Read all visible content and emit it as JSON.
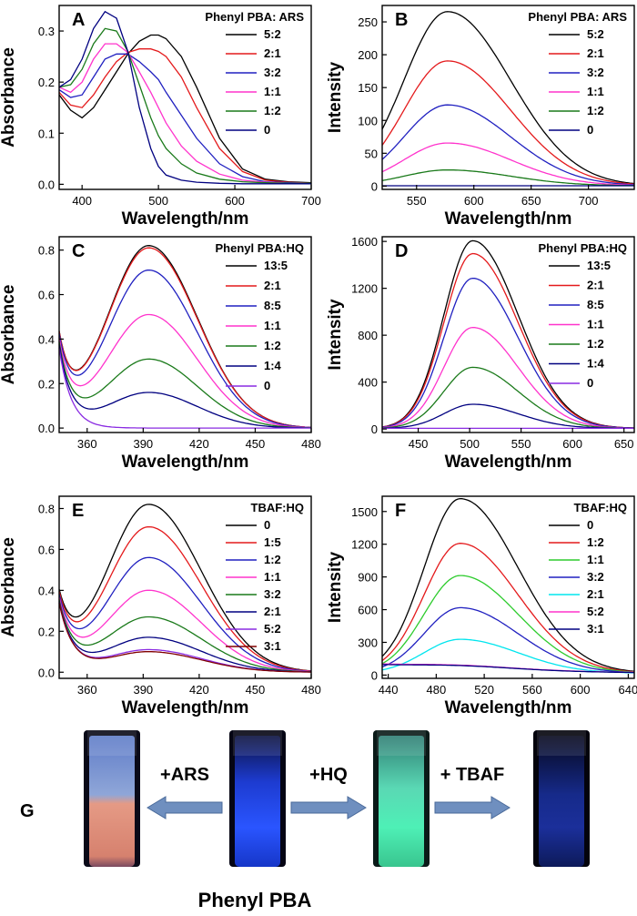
{
  "chart_data": [
    {
      "panel": "A",
      "type": "line",
      "legend_title": "Phenyl PBA: ARS",
      "xlabel": "Wavelength/nm",
      "ylabel": "Absorbance",
      "xlim": [
        370,
        700
      ],
      "ylim": [
        -0.01,
        0.35
      ],
      "xticks": [
        400,
        500,
        600,
        700
      ],
      "yticks": [
        0.0,
        0.1,
        0.2,
        0.3
      ],
      "ytick_labels": [
        "0.0",
        "0.1",
        "0.2",
        "0.3"
      ],
      "legend_position": "top-right",
      "series": [
        {
          "name": "5:2",
          "color": "#000000",
          "x": [
            370,
            385,
            400,
            415,
            430,
            445,
            460,
            475,
            490,
            500,
            510,
            530,
            550,
            580,
            610,
            640,
            670,
            700
          ],
          "y": [
            0.175,
            0.145,
            0.13,
            0.15,
            0.185,
            0.22,
            0.255,
            0.28,
            0.292,
            0.292,
            0.285,
            0.25,
            0.19,
            0.09,
            0.03,
            0.01,
            0.005,
            0.003
          ]
        },
        {
          "name": "2:1",
          "color": "#e41a1c",
          "x": [
            370,
            385,
            400,
            415,
            430,
            445,
            460,
            475,
            490,
            500,
            510,
            530,
            550,
            580,
            610,
            640,
            670,
            700
          ],
          "y": [
            0.18,
            0.155,
            0.15,
            0.175,
            0.21,
            0.24,
            0.258,
            0.265,
            0.265,
            0.26,
            0.25,
            0.21,
            0.15,
            0.07,
            0.025,
            0.008,
            0.004,
            0.002
          ]
        },
        {
          "name": "3:2",
          "color": "#2020c0",
          "x": [
            370,
            385,
            400,
            415,
            430,
            445,
            460,
            475,
            490,
            500,
            510,
            530,
            550,
            580,
            610,
            640,
            670,
            700
          ],
          "y": [
            0.185,
            0.17,
            0.175,
            0.21,
            0.245,
            0.255,
            0.255,
            0.24,
            0.22,
            0.205,
            0.18,
            0.135,
            0.09,
            0.04,
            0.015,
            0.005,
            0.003,
            0.002
          ]
        },
        {
          "name": "1:1",
          "color": "#ff33cc",
          "x": [
            370,
            385,
            400,
            415,
            430,
            445,
            460,
            475,
            490,
            500,
            510,
            530,
            550,
            580,
            610,
            640,
            670,
            700
          ],
          "y": [
            0.19,
            0.18,
            0.2,
            0.245,
            0.275,
            0.275,
            0.258,
            0.22,
            0.18,
            0.15,
            0.12,
            0.075,
            0.045,
            0.02,
            0.008,
            0.004,
            0.002,
            0.002
          ]
        },
        {
          "name": "1:2",
          "color": "#1a7a1a",
          "x": [
            370,
            385,
            400,
            415,
            430,
            445,
            460,
            475,
            490,
            500,
            510,
            530,
            550,
            580,
            610,
            640,
            670,
            700
          ],
          "y": [
            0.19,
            0.195,
            0.225,
            0.275,
            0.305,
            0.3,
            0.26,
            0.195,
            0.13,
            0.095,
            0.07,
            0.04,
            0.022,
            0.01,
            0.005,
            0.003,
            0.002,
            0.002
          ]
        },
        {
          "name": "0",
          "color": "#000080",
          "x": [
            370,
            385,
            400,
            415,
            430,
            445,
            460,
            475,
            490,
            500,
            510,
            530,
            550,
            580,
            610,
            640,
            670,
            700
          ],
          "y": [
            0.19,
            0.205,
            0.245,
            0.305,
            0.338,
            0.325,
            0.26,
            0.15,
            0.07,
            0.035,
            0.018,
            0.008,
            0.004,
            0.002,
            0.001,
            0.001,
            0.001,
            0.001
          ]
        }
      ]
    },
    {
      "panel": "B",
      "type": "line",
      "legend_title": "Phenyl PBA: ARS",
      "xlabel": "Wavelength/nm",
      "ylabel": "Intensity",
      "xlim": [
        520,
        740
      ],
      "ylim": [
        -5,
        275
      ],
      "xticks": [
        550,
        600,
        650,
        700
      ],
      "yticks": [
        0,
        50,
        100,
        150,
        200,
        250
      ],
      "legend_position": "top-right",
      "series": [
        {
          "name": "5:2",
          "color": "#000000",
          "peak": 265
        },
        {
          "name": "2:1",
          "color": "#e41a1c",
          "peak": 190
        },
        {
          "name": "3:2",
          "color": "#2020c0",
          "peak": 123
        },
        {
          "name": "1:1",
          "color": "#ff33cc",
          "peak": 65
        },
        {
          "name": "1:2",
          "color": "#1a7a1a",
          "peak": 24
        },
        {
          "name": "0",
          "color": "#000080",
          "peak": 0
        }
      ]
    },
    {
      "panel": "C",
      "type": "line",
      "legend_title": "Phenyl PBA:HQ",
      "xlabel": "Wavelength/nm",
      "ylabel": "Absorbance",
      "xlim": [
        345,
        480
      ],
      "ylim": [
        -0.02,
        0.86
      ],
      "xticks": [
        360,
        390,
        420,
        450,
        480
      ],
      "yticks": [
        0.0,
        0.2,
        0.4,
        0.6,
        0.8
      ],
      "ytick_labels": [
        "0.0",
        "0.2",
        "0.4",
        "0.6",
        "0.8"
      ],
      "legend_position": "top-right",
      "series": [
        {
          "name": "13:5",
          "color": "#000000",
          "peak": 0.82
        },
        {
          "name": "2:1",
          "color": "#e41a1c",
          "peak": 0.81
        },
        {
          "name": "8:5",
          "color": "#2020c0",
          "peak": 0.71
        },
        {
          "name": "1:1",
          "color": "#ff33cc",
          "peak": 0.51
        },
        {
          "name": "1:2",
          "color": "#1a7a1a",
          "peak": 0.31
        },
        {
          "name": "1:4",
          "color": "#000080",
          "peak": 0.16
        },
        {
          "name": "0",
          "color": "#8a2be2",
          "peak": 0.0
        }
      ]
    },
    {
      "panel": "D",
      "type": "line",
      "legend_title": "Phenyl PBA:HQ",
      "xlabel": "Wavelength/nm",
      "ylabel": "Intensity",
      "xlim": [
        415,
        660
      ],
      "ylim": [
        -30,
        1640
      ],
      "xticks": [
        450,
        500,
        550,
        600,
        650
      ],
      "yticks": [
        0,
        400,
        800,
        1200,
        1600
      ],
      "legend_position": "top-right",
      "series": [
        {
          "name": "13:5",
          "color": "#000000",
          "peak": 1600
        },
        {
          "name": "2:1",
          "color": "#e41a1c",
          "peak": 1490
        },
        {
          "name": "8:5",
          "color": "#2020c0",
          "peak": 1280
        },
        {
          "name": "1:1",
          "color": "#ff33cc",
          "peak": 860
        },
        {
          "name": "1:2",
          "color": "#1a7a1a",
          "peak": 520
        },
        {
          "name": "1:4",
          "color": "#000080",
          "peak": 205
        },
        {
          "name": "0",
          "color": "#8a2be2",
          "peak": 0
        }
      ]
    },
    {
      "panel": "E",
      "type": "line",
      "legend_title": "TBAF:HQ",
      "xlabel": "Wavelength/nm",
      "ylabel": "Absorbance",
      "xlim": [
        345,
        480
      ],
      "ylim": [
        -0.03,
        0.86
      ],
      "xticks": [
        360,
        390,
        420,
        450,
        480
      ],
      "yticks": [
        0.0,
        0.2,
        0.4,
        0.6,
        0.8
      ],
      "ytick_labels": [
        "0.0",
        "0.2",
        "0.4",
        "0.6",
        "0.8"
      ],
      "legend_position": "top-right",
      "series": [
        {
          "name": "0",
          "color": "#000000",
          "peak": 0.82
        },
        {
          "name": "1:5",
          "color": "#e41a1c",
          "peak": 0.71
        },
        {
          "name": "1:2",
          "color": "#2020c0",
          "peak": 0.56
        },
        {
          "name": "1:1",
          "color": "#ff33cc",
          "peak": 0.4
        },
        {
          "name": "3:2",
          "color": "#1a7a1a",
          "peak": 0.27
        },
        {
          "name": "2:1",
          "color": "#000080",
          "peak": 0.17
        },
        {
          "name": "5:2",
          "color": "#8a2be2",
          "peak": 0.11
        },
        {
          "name": "3:1",
          "color": "#800000",
          "peak": 0.1
        }
      ]
    },
    {
      "panel": "F",
      "type": "line",
      "legend_title": "TBAF:HQ",
      "xlabel": "Wavelength/nm",
      "ylabel": "Intensity",
      "xlim": [
        435,
        645
      ],
      "ylim": [
        -30,
        1640
      ],
      "xticks": [
        440,
        480,
        520,
        560,
        600,
        640
      ],
      "yticks": [
        0,
        300,
        600,
        900,
        1200,
        1500
      ],
      "legend_position": "top-right",
      "series": [
        {
          "name": "0",
          "color": "#000000",
          "peak": 1600
        },
        {
          "name": "1:2",
          "color": "#e41a1c",
          "peak": 1190
        },
        {
          "name": "1:1",
          "color": "#2ecc2e",
          "peak": 895
        },
        {
          "name": "3:2",
          "color": "#2020c0",
          "peak": 600
        },
        {
          "name": "2:1",
          "color": "#00e5ee",
          "peak": 310
        },
        {
          "name": "5:2",
          "color": "#ff33cc",
          "peak": 85
        },
        {
          "name": "3:1",
          "color": "#000080",
          "peak": 75
        }
      ]
    }
  ],
  "panel_g": {
    "letter": "G",
    "arrows": [
      {
        "label": "+ARS",
        "direction": "left"
      },
      {
        "label": "+HQ",
        "direction": "right"
      },
      {
        "label": "+ TBAF",
        "direction": "right"
      }
    ],
    "caption": "Phenyl PBA",
    "arrow_color": "#6f8fbf"
  }
}
